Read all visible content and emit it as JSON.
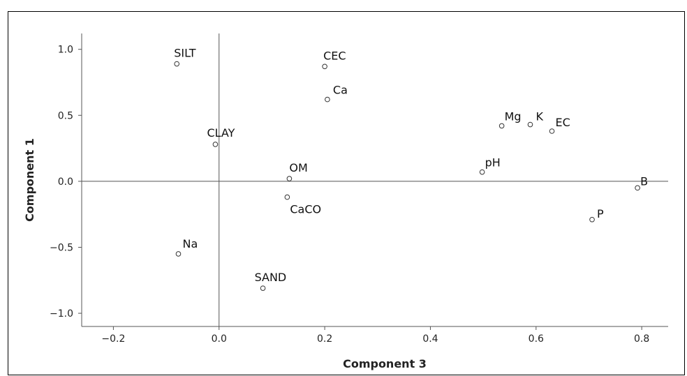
{
  "chart_data": {
    "type": "scatter",
    "title": "",
    "xlabel": "Component 3",
    "ylabel": "Component 1",
    "xlim": [
      -0.26,
      0.85
    ],
    "ylim": [
      -1.1,
      1.12
    ],
    "x_ticks": [
      -0.2,
      0.0,
      0.2,
      0.4,
      0.6,
      0.8
    ],
    "x_tick_labels": [
      "−0.2",
      "0.0",
      "0.2",
      "0.4",
      "0.6",
      "0.8"
    ],
    "y_ticks": [
      1.0,
      0.5,
      0.0,
      -0.5,
      -1.0
    ],
    "y_tick_labels": [
      "1.0",
      "0.5",
      "0.0",
      "−0.5",
      "−1.0"
    ],
    "reference_lines": {
      "x": 0.0,
      "y": 0.0
    },
    "grid": false,
    "points": [
      {
        "label": "SILT",
        "x": -0.08,
        "y": 0.89
      },
      {
        "label": "CEC",
        "x": 0.2,
        "y": 0.87
      },
      {
        "label": "Ca",
        "x": 0.205,
        "y": 0.62
      },
      {
        "label": "CLAY",
        "x": -0.007,
        "y": 0.28
      },
      {
        "label": "Mg",
        "x": 0.535,
        "y": 0.42
      },
      {
        "label": "K",
        "x": 0.589,
        "y": 0.43
      },
      {
        "label": "EC",
        "x": 0.63,
        "y": 0.38
      },
      {
        "label": "pH",
        "x": 0.498,
        "y": 0.07
      },
      {
        "label": "OM",
        "x": 0.133,
        "y": 0.02
      },
      {
        "label": "CaCO",
        "x": 0.129,
        "y": -0.12
      },
      {
        "label": "B",
        "x": 0.792,
        "y": -0.05
      },
      {
        "label": "P",
        "x": 0.706,
        "y": -0.29
      },
      {
        "label": "Na",
        "x": -0.077,
        "y": -0.55
      },
      {
        "label": "SAND",
        "x": 0.083,
        "y": -0.81
      }
    ]
  }
}
